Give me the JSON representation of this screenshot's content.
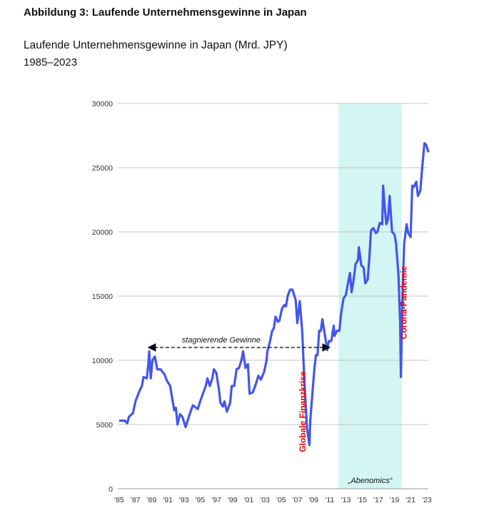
{
  "figure_title": "Abbildung 3: Laufende Unternehmensgewinne in Japan",
  "chart_data": {
    "type": "line",
    "title": "Laufende Unternehmensgewinne in Japan (Mrd. JPY)",
    "subtitle": "1985–2023",
    "xlabel": "",
    "ylabel": "",
    "xlim": [
      1985,
      2023.5
    ],
    "ylim": [
      0,
      30000
    ],
    "grid": true,
    "line_color": "#4455ee",
    "y_ticks": [
      0,
      5000,
      10000,
      15000,
      20000,
      25000,
      30000
    ],
    "x_ticks": [
      {
        "year": 1985,
        "label": "'85"
      },
      {
        "year": 1987,
        "label": "'87"
      },
      {
        "year": 1989,
        "label": "'89"
      },
      {
        "year": 1991,
        "label": "'91"
      },
      {
        "year": 1993,
        "label": "'93"
      },
      {
        "year": 1995,
        "label": "'95"
      },
      {
        "year": 1997,
        "label": "'97"
      },
      {
        "year": 1999,
        "label": "'99"
      },
      {
        "year": 2001,
        "label": "'01"
      },
      {
        "year": 2003,
        "label": "'03"
      },
      {
        "year": 2005,
        "label": "'05"
      },
      {
        "year": 2007,
        "label": "'07"
      },
      {
        "year": 2009,
        "label": "'09"
      },
      {
        "year": 2011,
        "label": "'11"
      },
      {
        "year": 2013,
        "label": "'13"
      },
      {
        "year": 2015,
        "label": "'15"
      },
      {
        "year": 2017,
        "label": "'17"
      },
      {
        "year": 2019,
        "label": "'19"
      },
      {
        "year": 2021,
        "label": "'21"
      },
      {
        "year": 2023,
        "label": "'23"
      }
    ],
    "series": [
      {
        "name": "Laufende Unternehmensgewinne",
        "points": [
          [
            1985.0,
            5300
          ],
          [
            1985.7,
            5300
          ],
          [
            1986.0,
            5100
          ],
          [
            1986.2,
            5600
          ],
          [
            1986.7,
            5900
          ],
          [
            1987.0,
            6800
          ],
          [
            1987.5,
            7600
          ],
          [
            1987.8,
            8000
          ],
          [
            1988.0,
            8700
          ],
          [
            1988.4,
            8600
          ],
          [
            1988.6,
            9700
          ],
          [
            1988.7,
            10700
          ],
          [
            1988.9,
            8600
          ],
          [
            1989.1,
            10000
          ],
          [
            1989.4,
            10300
          ],
          [
            1989.7,
            9300
          ],
          [
            1990.1,
            9300
          ],
          [
            1990.6,
            8900
          ],
          [
            1990.9,
            8400
          ],
          [
            1991.3,
            8000
          ],
          [
            1991.5,
            7200
          ],
          [
            1991.8,
            6100
          ],
          [
            1992.0,
            6300
          ],
          [
            1992.2,
            5000
          ],
          [
            1992.5,
            5800
          ],
          [
            1992.8,
            5600
          ],
          [
            1993.2,
            4800
          ],
          [
            1993.5,
            5400
          ],
          [
            1993.7,
            5800
          ],
          [
            1994.1,
            6500
          ],
          [
            1994.3,
            6400
          ],
          [
            1994.7,
            6200
          ],
          [
            1995.0,
            6800
          ],
          [
            1995.4,
            7500
          ],
          [
            1995.7,
            8000
          ],
          [
            1995.9,
            8600
          ],
          [
            1996.2,
            8000
          ],
          [
            1996.5,
            8600
          ],
          [
            1996.7,
            9300
          ],
          [
            1997.0,
            9000
          ],
          [
            1997.3,
            7800
          ],
          [
            1997.5,
            6700
          ],
          [
            1997.8,
            6400
          ],
          [
            1998.0,
            6800
          ],
          [
            1998.3,
            6000
          ],
          [
            1998.7,
            6700
          ],
          [
            1998.9,
            8000
          ],
          [
            1999.2,
            8000
          ],
          [
            1999.5,
            9300
          ],
          [
            1999.8,
            9400
          ],
          [
            2000.1,
            10000
          ],
          [
            2000.3,
            10700
          ],
          [
            2000.6,
            9400
          ],
          [
            2000.9,
            9700
          ],
          [
            2001.1,
            7400
          ],
          [
            2001.5,
            7500
          ],
          [
            2001.8,
            8000
          ],
          [
            2002.2,
            8800
          ],
          [
            2002.5,
            8500
          ],
          [
            2002.9,
            9100
          ],
          [
            2003.2,
            10000
          ],
          [
            2003.3,
            10700
          ],
          [
            2003.6,
            11400
          ],
          [
            2003.9,
            12300
          ],
          [
            2004.1,
            12500
          ],
          [
            2004.3,
            13400
          ],
          [
            2004.6,
            13000
          ],
          [
            2004.8,
            13100
          ],
          [
            2005.1,
            14000
          ],
          [
            2005.4,
            14300
          ],
          [
            2005.6,
            14200
          ],
          [
            2005.8,
            15000
          ],
          [
            2006.1,
            15500
          ],
          [
            2006.4,
            15500
          ],
          [
            2006.8,
            14700
          ],
          [
            2007.0,
            12900
          ],
          [
            2007.3,
            14600
          ],
          [
            2007.6,
            12300
          ],
          [
            2007.9,
            8000
          ],
          [
            2008.2,
            4700
          ],
          [
            2008.5,
            3400
          ],
          [
            2008.6,
            5300
          ],
          [
            2008.8,
            6900
          ],
          [
            2009.1,
            9300
          ],
          [
            2009.3,
            10400
          ],
          [
            2009.5,
            10400
          ],
          [
            2009.7,
            12300
          ],
          [
            2009.9,
            12300
          ],
          [
            2010.1,
            13200
          ],
          [
            2010.4,
            12000
          ],
          [
            2010.7,
            10800
          ],
          [
            2010.9,
            11500
          ],
          [
            2011.2,
            11500
          ],
          [
            2011.5,
            12700
          ],
          [
            2011.6,
            11900
          ],
          [
            2011.9,
            12300
          ],
          [
            2012.2,
            12300
          ],
          [
            2012.4,
            13600
          ],
          [
            2012.7,
            14800
          ],
          [
            2013.0,
            15100
          ],
          [
            2013.2,
            15800
          ],
          [
            2013.5,
            16800
          ],
          [
            2013.7,
            15300
          ],
          [
            2013.9,
            16000
          ],
          [
            2014.2,
            17500
          ],
          [
            2014.5,
            17800
          ],
          [
            2014.6,
            18800
          ],
          [
            2014.9,
            17400
          ],
          [
            2015.2,
            17200
          ],
          [
            2015.4,
            16000
          ],
          [
            2015.7,
            16300
          ],
          [
            2015.9,
            18000
          ],
          [
            2016.1,
            20100
          ],
          [
            2016.4,
            20300
          ],
          [
            2016.7,
            19900
          ],
          [
            2016.9,
            20000
          ],
          [
            2017.2,
            20700
          ],
          [
            2017.5,
            20600
          ],
          [
            2017.6,
            23600
          ],
          [
            2017.8,
            21900
          ],
          [
            2018.0,
            20600
          ],
          [
            2018.2,
            21000
          ],
          [
            2018.4,
            22800
          ],
          [
            2018.7,
            20000
          ],
          [
            2019.0,
            19800
          ],
          [
            2019.2,
            19100
          ],
          [
            2019.5,
            16600
          ],
          [
            2019.7,
            13000
          ],
          [
            2019.8,
            8700
          ],
          [
            2020.0,
            15200
          ],
          [
            2020.2,
            19100
          ],
          [
            2020.5,
            20600
          ],
          [
            2020.7,
            19900
          ],
          [
            2021.0,
            19600
          ],
          [
            2021.2,
            23600
          ],
          [
            2021.4,
            23500
          ],
          [
            2021.7,
            23900
          ],
          [
            2021.9,
            22800
          ],
          [
            2022.2,
            23200
          ],
          [
            2022.4,
            24800
          ],
          [
            2022.7,
            26900
          ],
          [
            2022.9,
            26800
          ],
          [
            2023.2,
            26200
          ]
        ]
      }
    ],
    "shaded_region": {
      "label": "„Abenomics“",
      "x_start": 2012.1,
      "x_end": 2019.9,
      "color": "#d3f5f3"
    },
    "annotations": [
      {
        "text": "stagnierende Gewinne",
        "type": "double-arrow",
        "x_start": 1988.6,
        "x_end": 2011.0,
        "y": 11000
      },
      {
        "text": "Globale Finanzkrise",
        "type": "vertical-label",
        "x": 2008.0,
        "y": 6000,
        "color": "#ee0000"
      },
      {
        "text": "Corona-Pandemie",
        "type": "vertical-label",
        "x": 2020.5,
        "y": 14500,
        "color": "#ee0000"
      }
    ]
  }
}
